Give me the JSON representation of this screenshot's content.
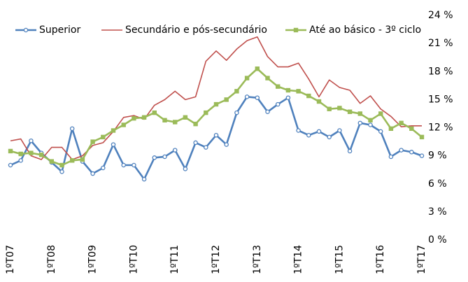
{
  "chart_data": {
    "type": "line",
    "categories": [
      "1ºT07",
      null,
      null,
      null,
      "1ºT08",
      null,
      null,
      null,
      "1ºT09",
      null,
      null,
      null,
      "1ºT10",
      null,
      null,
      null,
      "1ºT11",
      null,
      null,
      null,
      "1ºT12",
      null,
      null,
      null,
      "1ºT13",
      null,
      null,
      null,
      "1ºT14",
      null,
      null,
      null,
      "1ºT15",
      null,
      null,
      null,
      "1ºT16",
      null,
      null,
      null,
      "1ºT17"
    ],
    "series": [
      {
        "name": "Superior",
        "color": "#4f81bd",
        "marker": "circle",
        "values": [
          8.0,
          8.5,
          10.6,
          9.3,
          8.3,
          7.3,
          11.9,
          8.4,
          7.1,
          7.7,
          10.2,
          8.0,
          8.0,
          6.5,
          8.8,
          8.9,
          9.6,
          7.6,
          10.4,
          9.9,
          11.2,
          10.2,
          13.6,
          15.3,
          15.2,
          13.7,
          14.5,
          15.2,
          11.7,
          11.2,
          11.6,
          11.0,
          11.7,
          9.5,
          12.5,
          12.3,
          11.6,
          8.9,
          9.6,
          9.4,
          9.0
        ]
      },
      {
        "name": "Secundário e pós-secundário",
        "color": "#c0504d",
        "marker": "none",
        "values": [
          10.6,
          10.8,
          9.0,
          8.6,
          9.9,
          9.9,
          8.6,
          9.0,
          10.1,
          10.4,
          11.6,
          13.1,
          13.3,
          12.9,
          14.4,
          15.0,
          15.9,
          15.0,
          15.3,
          19.1,
          20.2,
          19.2,
          20.4,
          21.3,
          21.7,
          19.6,
          18.5,
          18.5,
          18.9,
          17.2,
          15.3,
          17.1,
          16.3,
          16.0,
          14.6,
          15.4,
          14.0,
          13.2,
          12.1,
          12.2,
          12.2
        ]
      },
      {
        "name": "Até ao básico - 3º ciclo",
        "color": "#9bbb59",
        "marker": "square",
        "values": [
          9.5,
          9.2,
          9.3,
          9.1,
          8.4,
          8.0,
          8.5,
          8.6,
          10.5,
          11.0,
          11.7,
          12.3,
          13.0,
          13.1,
          13.6,
          12.8,
          12.6,
          13.1,
          12.4,
          13.6,
          14.5,
          15.0,
          15.9,
          17.3,
          18.3,
          17.3,
          16.4,
          16.0,
          15.9,
          15.4,
          14.8,
          14.0,
          14.1,
          13.7,
          13.5,
          12.8,
          13.5,
          11.9,
          12.5,
          11.9,
          11.0
        ]
      }
    ],
    "ylim": [
      0,
      24
    ],
    "yticks": [
      {
        "value": 0,
        "label": "0 %"
      },
      {
        "value": 3,
        "label": "3 %"
      },
      {
        "value": 6,
        "label": "6 %"
      },
      {
        "value": 9,
        "label": "9 %"
      },
      {
        "value": 12,
        "label": "12 %"
      },
      {
        "value": 15,
        "label": "15 %"
      },
      {
        "value": 18,
        "label": "18 %"
      },
      {
        "value": 21,
        "label": "21 %"
      },
      {
        "value": 24,
        "label": "24 %"
      }
    ],
    "legend": "top",
    "grid": false
  }
}
